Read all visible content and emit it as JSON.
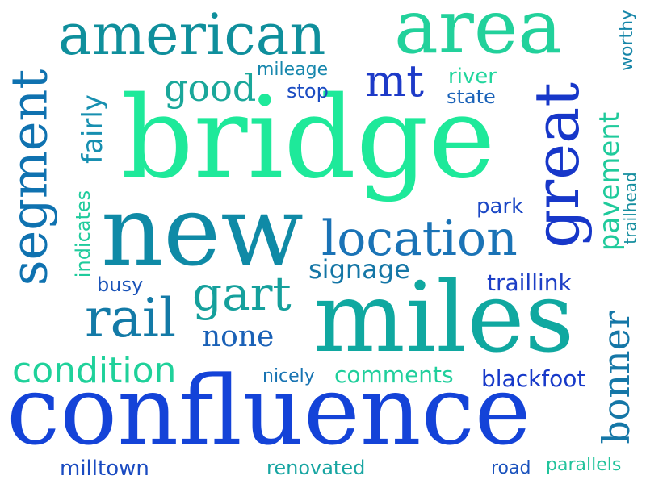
{
  "words": [
    {
      "text": "bridge",
      "color": "#1ee99a"
    },
    {
      "text": "new",
      "color": "#0f8aa6"
    },
    {
      "text": "confluence",
      "color": "#1443d8"
    },
    {
      "text": "miles",
      "color": "#10a8a0"
    },
    {
      "text": "area",
      "color": "#22d19b"
    },
    {
      "text": "american",
      "color": "#0f8f9c"
    },
    {
      "text": "segment",
      "color": "#0f72b0"
    },
    {
      "text": "great",
      "color": "#1737c9"
    },
    {
      "text": "location",
      "color": "#1a73b6"
    },
    {
      "text": "rail",
      "color": "#137aa7"
    },
    {
      "text": "gart",
      "color": "#15a09c"
    },
    {
      "text": "mt",
      "color": "#1d3ac8"
    },
    {
      "text": "good",
      "color": "#1aa79a"
    },
    {
      "text": "fairly",
      "color": "#178fb0"
    },
    {
      "text": "condition",
      "color": "#1fd19a"
    },
    {
      "text": "bonner",
      "color": "#1577a7"
    },
    {
      "text": "pavement",
      "color": "#1fca9b"
    },
    {
      "text": "signage",
      "color": "#1476a6"
    },
    {
      "text": "none",
      "color": "#1a61b7"
    },
    {
      "text": "indicates",
      "color": "#1fcb9c"
    },
    {
      "text": "busy",
      "color": "#1a53b8"
    },
    {
      "text": "park",
      "color": "#1b47c5"
    },
    {
      "text": "traillink",
      "color": "#1d3fc6"
    },
    {
      "text": "blackfoot",
      "color": "#1739c9"
    },
    {
      "text": "comments",
      "color": "#20cf9c"
    },
    {
      "text": "nicely",
      "color": "#1773b2"
    },
    {
      "text": "river",
      "color": "#21d69d"
    },
    {
      "text": "state",
      "color": "#1a62b8"
    },
    {
      "text": "mileage",
      "color": "#1787ad"
    },
    {
      "text": "stop",
      "color": "#1b4cc2"
    },
    {
      "text": "worthy",
      "color": "#1585a8"
    },
    {
      "text": "trailhead",
      "color": "#168e9f"
    },
    {
      "text": "milltown",
      "color": "#1a4bc1"
    },
    {
      "text": "renovated",
      "color": "#17a5a2"
    },
    {
      "text": "road",
      "color": "#1a52bd"
    },
    {
      "text": "parallels",
      "color": "#20c39b"
    }
  ]
}
